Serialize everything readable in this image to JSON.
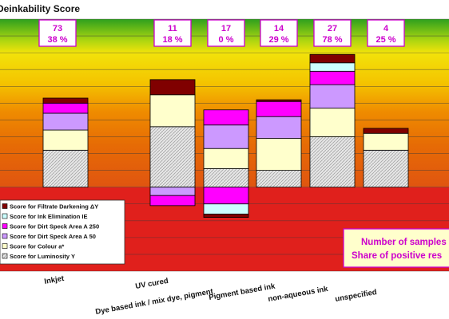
{
  "chart_data": {
    "type": "bar",
    "stacked": true,
    "title": "Deinkability Score",
    "categories": [
      "Inkjet",
      "UV cured",
      "Dye based ink / mix dye, pigment",
      "Pigment based ink",
      "non-aqueous ink",
      "unspecified"
    ],
    "annotations": [
      {
        "count": "73",
        "share": "38 %"
      },
      {
        "count": "11",
        "share": "18 %"
      },
      {
        "count": "17",
        "share": "0 %"
      },
      {
        "count": "14",
        "share": "29 %"
      },
      {
        "count": "27",
        "share": "78 %"
      },
      {
        "count": "4",
        "share": "25 %"
      }
    ],
    "series": [
      {
        "name": "Score for Luminosity Y",
        "color": "#d9d9d9",
        "values": [
          22,
          36,
          11,
          10,
          30,
          22
        ]
      },
      {
        "name": "Score for Colour a*",
        "color": "#ffffcc",
        "values": [
          12,
          19,
          12,
          19,
          17,
          10
        ]
      },
      {
        "name": "Score for Dirt Speck Area A 50",
        "color": "#cc99ff",
        "values": [
          10,
          0,
          14,
          13,
          14,
          0
        ]
      },
      {
        "name": "Score for Dirt Speck Area A 250",
        "color": "#ff00ff",
        "values": [
          6,
          0,
          9,
          9,
          8,
          0
        ]
      },
      {
        "name": "Score for Ink Elimination IE",
        "color": "#ccffff",
        "values": [
          0,
          0,
          0,
          0,
          5,
          0
        ]
      },
      {
        "name": "Score for Filtrate Darkening ΔY",
        "color": "#800000",
        "values": [
          3,
          9,
          0,
          1,
          5,
          3
        ]
      }
    ],
    "negative_series": [
      {
        "name": "Score for Dirt Speck Area A 50",
        "color": "#cc99ff",
        "values": [
          0,
          -5,
          0,
          0,
          0,
          0
        ]
      },
      {
        "name": "Score for Dirt Speck Area A 250",
        "color": "#ff00ff",
        "values": [
          0,
          -6,
          -10,
          0,
          0,
          0
        ]
      },
      {
        "name": "Score for Ink Elimination IE",
        "color": "#ccffff",
        "values": [
          0,
          0,
          0,
          0,
          0,
          0
        ]
      }
    ],
    "ylim": [
      -50,
      100
    ],
    "grid": true,
    "legend_position": "bottom-left",
    "note_lines": [
      "Number of samples",
      "Share of positive res"
    ]
  }
}
